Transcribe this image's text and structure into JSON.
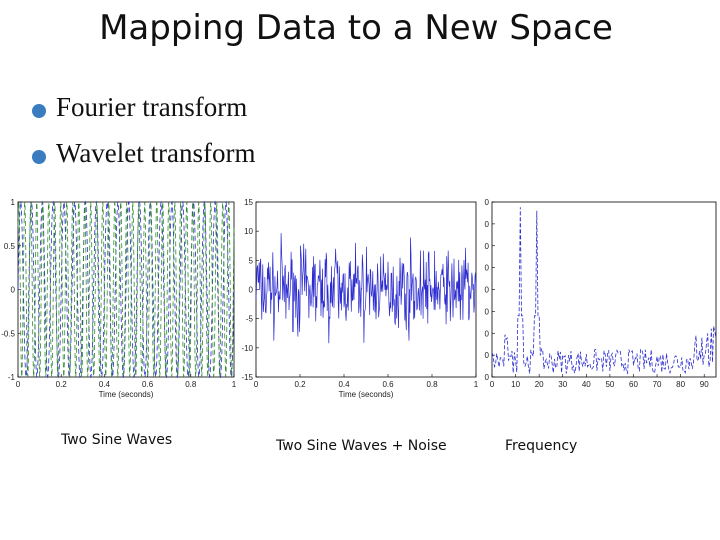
{
  "slide": {
    "title": "Mapping Data to a New Space",
    "bullets": [
      "Fourier transform",
      "Wavelet transform"
    ],
    "captions": [
      "Two Sine Waves",
      "Two Sine Waves + Noise",
      "Frequency"
    ],
    "colors": {
      "blue": "#2b2bd0",
      "green": "#2e8b2e",
      "bullet": "#3a7cc0"
    }
  },
  "chart_data": [
    {
      "type": "line",
      "xlabel": "Time (seconds)",
      "xlim": [
        0,
        1
      ],
      "ylim": [
        -1,
        1
      ],
      "xticks": [
        "0",
        "0.2",
        "0.4",
        "0.6",
        "0.8",
        "1"
      ],
      "yticks": [
        "1",
        "0.5",
        "0",
        "-0.5",
        "-1"
      ],
      "series": [
        {
          "style": "dashed",
          "color": "#2b2bd0",
          "frequency_hz": 20
        },
        {
          "style": "dashed",
          "color": "#2e8b2e",
          "frequency_hz": 36
        }
      ]
    },
    {
      "type": "line",
      "xlabel": "Time (seconds)",
      "xlim": [
        0,
        1
      ],
      "ylim": [
        -15,
        15
      ],
      "xticks": [
        "0",
        "0.2",
        "0.4",
        "0.6",
        "0.8",
        "1"
      ],
      "yticks": [
        "15",
        "10",
        "5",
        "0",
        "-5",
        "-10",
        "-15"
      ],
      "series": [
        {
          "style": "solid",
          "color": "#2b2bd0"
        }
      ]
    },
    {
      "type": "line",
      "xlim": [
        0,
        95
      ],
      "xticks": [
        "0",
        "10",
        "20",
        "30",
        "40",
        "50",
        "60",
        "70",
        "80",
        "90"
      ],
      "yticks": [
        "0",
        "0",
        "0",
        "0",
        "0",
        "0",
        "0",
        "0",
        "0"
      ],
      "series": [
        {
          "style": "dashed",
          "color": "#2b2bd0",
          "peaks_hz": [
            12,
            19
          ]
        }
      ]
    }
  ]
}
